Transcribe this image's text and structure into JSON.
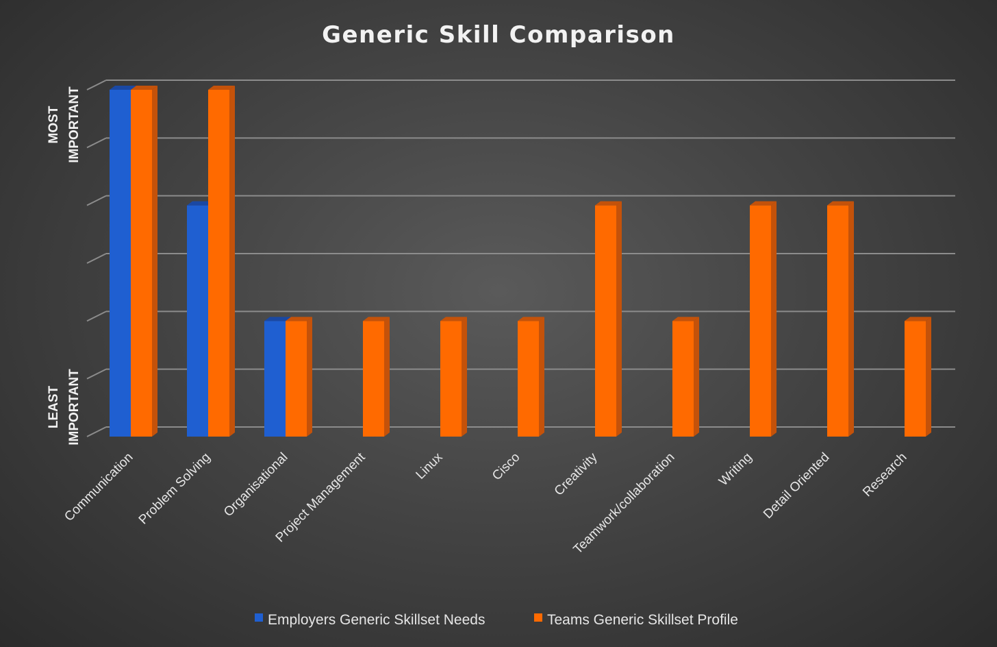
{
  "chart_data": {
    "type": "bar",
    "title": "Generic Skill Comparison",
    "categories": [
      "Communication",
      "Problem Solving",
      "Organisational",
      "Project Management",
      "Linux",
      "Cisco",
      "Creativity",
      "Teamwork/collaboration",
      "Writing",
      "Detail Oriented",
      "Research"
    ],
    "series": [
      {
        "name": "Employers Generic Skillset Needs",
        "color": "#1f5fd1",
        "side": "#1a48a3",
        "values": [
          6,
          4,
          2,
          null,
          null,
          null,
          null,
          null,
          null,
          null,
          null
        ]
      },
      {
        "name": "Teams Generic Skillset Profile",
        "color": "#ff6a00",
        "side": "#c4520a",
        "values": [
          6,
          6,
          2,
          2,
          2,
          2,
          4,
          2,
          4,
          4,
          2
        ]
      }
    ],
    "ylim": [
      0,
      6
    ],
    "ylabel_top": [
      "MOST",
      "IMPORTANT"
    ],
    "ylabel_bottom": [
      "LEAST",
      "IMPORTANT"
    ],
    "grid": true,
    "legend_position": "bottom"
  }
}
